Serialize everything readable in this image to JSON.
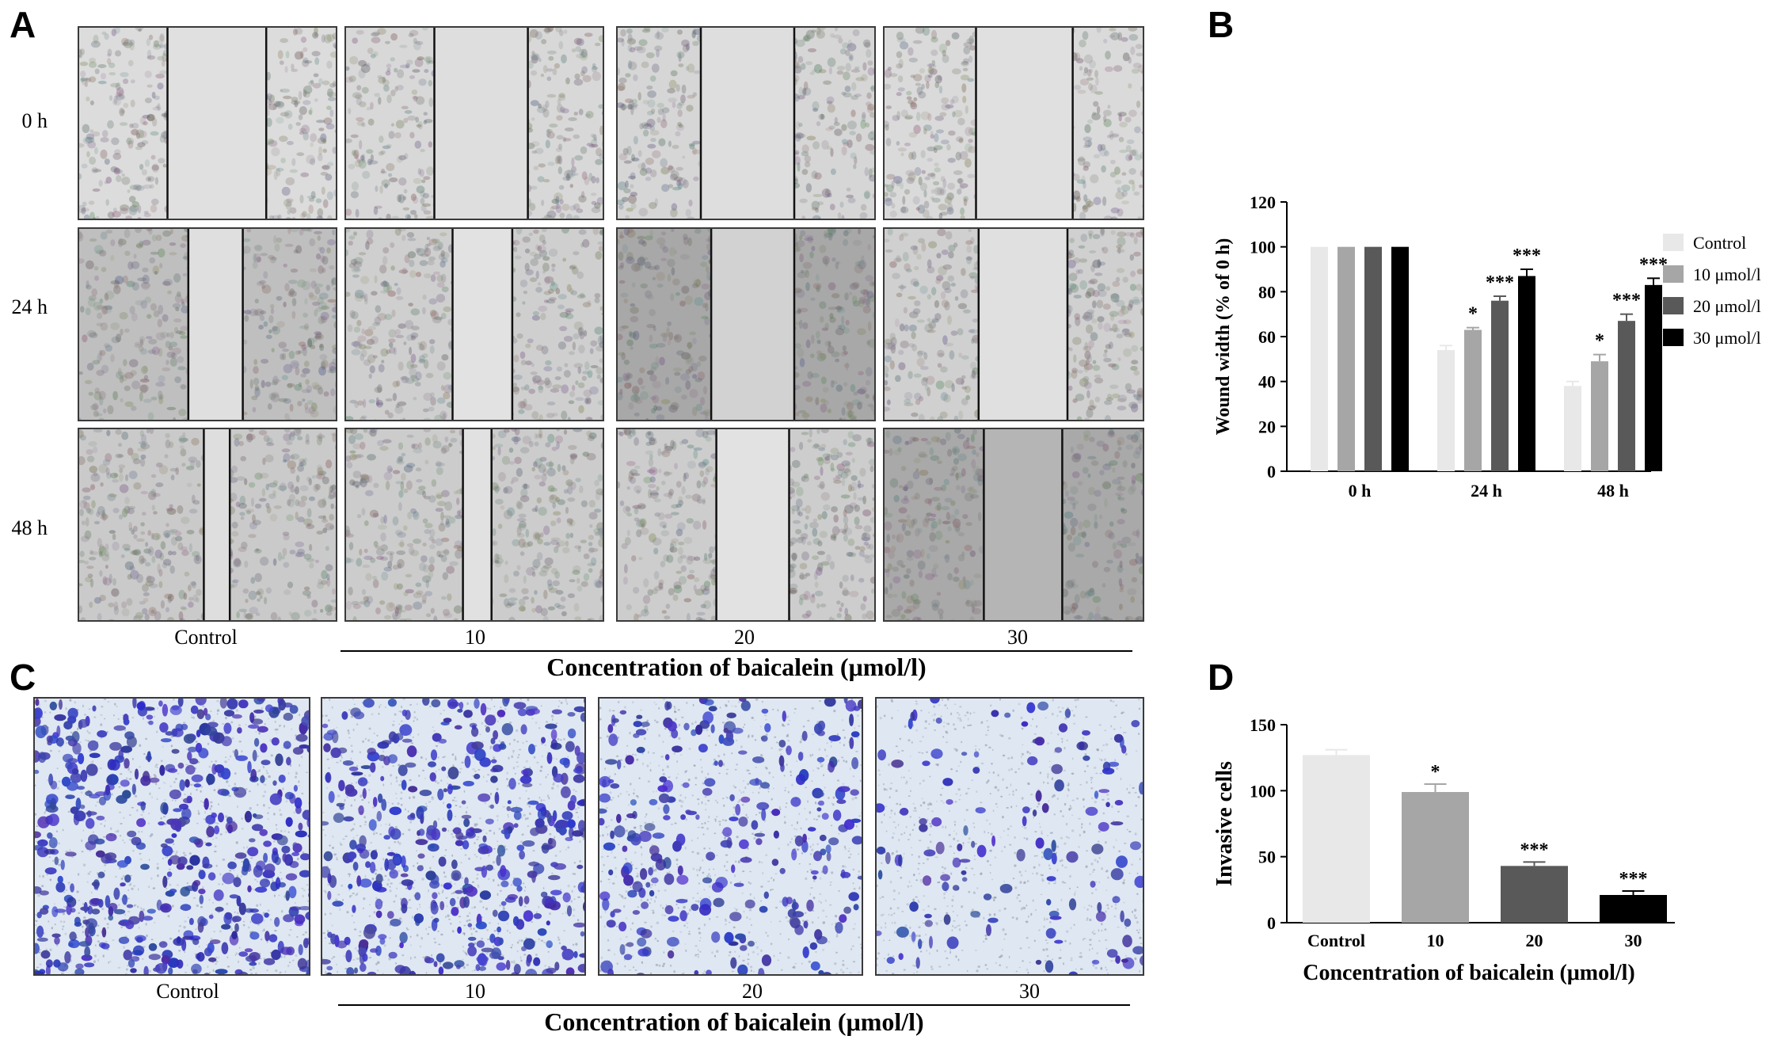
{
  "panels": {
    "A": {
      "letter": "A",
      "row_labels": [
        "0 h",
        "24 h",
        "48 h"
      ],
      "col_labels": [
        "Control",
        "10",
        "20",
        "30"
      ],
      "xlabel": "Concentration of baicalein (μmol/l)"
    },
    "B": {
      "letter": "B"
    },
    "C": {
      "letter": "C",
      "col_labels": [
        "Control",
        "10",
        "20",
        "30"
      ],
      "xlabel": "Concentration of baicalein (μmol/l)"
    },
    "D": {
      "letter": "D"
    }
  },
  "chart_data": [
    {
      "id": "B",
      "type": "bar",
      "categories": [
        "0 h",
        "24 h",
        "48 h"
      ],
      "series": [
        {
          "name": "Control",
          "values": [
            100,
            54,
            38
          ],
          "errors": [
            0,
            2,
            2
          ],
          "color": "#e8e8e8"
        },
        {
          "name": "10 μmol/l",
          "values": [
            100,
            63,
            49
          ],
          "errors": [
            0,
            1,
            3
          ],
          "color": "#a6a6a6"
        },
        {
          "name": "20 μmol/l",
          "values": [
            100,
            76,
            67
          ],
          "errors": [
            0,
            2,
            3
          ],
          "color": "#595959"
        },
        {
          "name": "30 μmol/l",
          "values": [
            100,
            87,
            83
          ],
          "errors": [
            0,
            3,
            3
          ],
          "color": "#000000"
        }
      ],
      "significance": [
        [
          "",
          "",
          ""
        ],
        [
          "",
          "*",
          "*"
        ],
        [
          "",
          "***",
          "***"
        ],
        [
          "",
          "***",
          "***"
        ]
      ],
      "ylabel": "Wound width (% of 0 h)",
      "xlabel": "",
      "ylim": [
        0,
        120
      ],
      "yticks": [
        "0",
        "20",
        "40",
        "60",
        "80",
        "100",
        "120"
      ],
      "legend_position": "right"
    },
    {
      "id": "D",
      "type": "bar",
      "categories": [
        "Control",
        "10",
        "20",
        "30"
      ],
      "values": [
        127,
        99,
        43,
        21
      ],
      "errors": [
        4,
        6,
        3,
        3
      ],
      "colors": [
        "#e8e8e8",
        "#a6a6a6",
        "#595959",
        "#000000"
      ],
      "significance": [
        "",
        "*",
        "***",
        "***"
      ],
      "ylabel": "Invasive cells",
      "xlabel": "Concentration of baicalein (μmol/l)",
      "ylim": [
        0,
        150
      ],
      "yticks": [
        "0",
        "50",
        "100",
        "150"
      ]
    }
  ]
}
